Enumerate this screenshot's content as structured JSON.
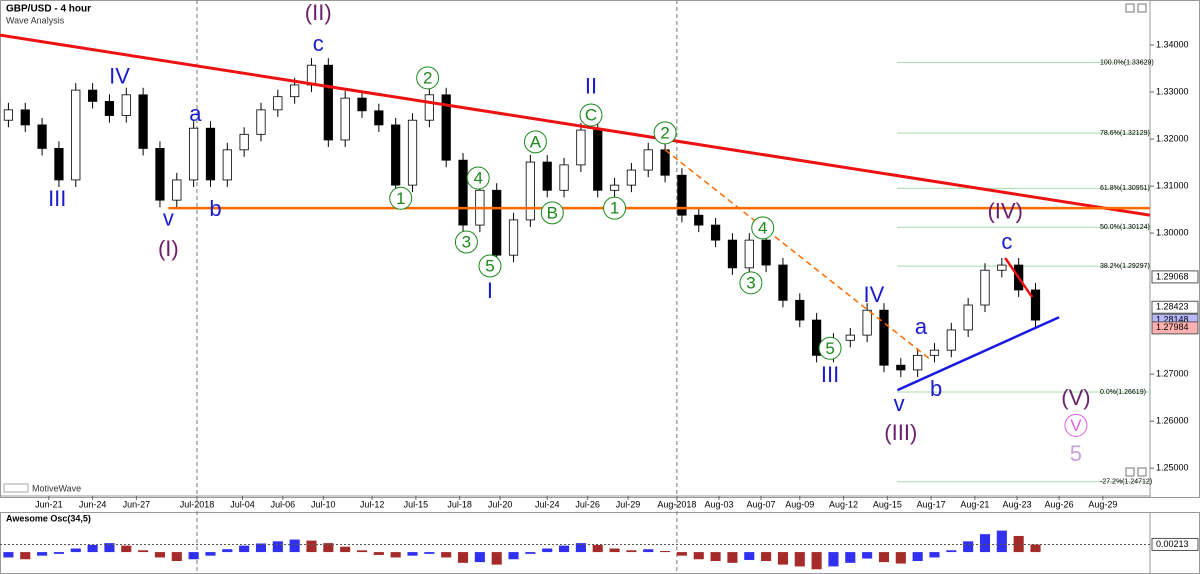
{
  "chart_data": [
    {
      "type": "candlestick",
      "title": "GBP/USD - 4 hour",
      "subtitle": "Wave Analysis",
      "watermark": "MotiveWave",
      "x": [
        0,
        1,
        2,
        3,
        4,
        5,
        6,
        7,
        8,
        9,
        10,
        11,
        12,
        13,
        14,
        15,
        16,
        17,
        18,
        19,
        20,
        21,
        22,
        23,
        24,
        25,
        26,
        27,
        28,
        29,
        30,
        31,
        32,
        33,
        34,
        35,
        36,
        37,
        38,
        39,
        40,
        41,
        42,
        43,
        44,
        45,
        46,
        47,
        48,
        49,
        50,
        51,
        52,
        53,
        54,
        55,
        56,
        57,
        58,
        59,
        60,
        61
      ],
      "open": [
        1.324,
        1.3262,
        1.323,
        1.318,
        1.3113,
        1.3304,
        1.328,
        1.325,
        1.3294,
        1.318,
        1.307,
        1.3113,
        1.3223,
        1.3113,
        1.3177,
        1.321,
        1.3262,
        1.329,
        1.3315,
        1.3357,
        1.3198,
        1.3287,
        1.326,
        1.323,
        1.3102,
        1.324,
        1.3294,
        1.3155,
        1.3017,
        1.3091,
        1.2953,
        1.3028,
        1.3151,
        1.3091,
        1.3145,
        1.3219,
        1.3091,
        1.3102,
        1.3134,
        1.3177,
        1.3123,
        1.3038,
        1.3017,
        1.2985,
        1.2926,
        1.2985,
        1.2932,
        1.2857,
        1.2815,
        1.274,
        1.2772,
        1.2783,
        1.2836,
        1.2719,
        1.2709,
        1.274,
        1.2751,
        1.2794,
        1.2847,
        1.2921,
        1.2932,
        1.2879
      ],
      "high": [
        1.3277,
        1.3277,
        1.3245,
        1.3195,
        1.3319,
        1.3319,
        1.3295,
        1.3309,
        1.3309,
        1.3195,
        1.3128,
        1.3238,
        1.3238,
        1.3192,
        1.3225,
        1.3277,
        1.3305,
        1.333,
        1.3372,
        1.3372,
        1.3302,
        1.3302,
        1.3275,
        1.3245,
        1.3255,
        1.3309,
        1.3309,
        1.317,
        1.3106,
        1.3106,
        1.3043,
        1.3166,
        1.3166,
        1.316,
        1.3234,
        1.3234,
        1.3117,
        1.3149,
        1.3192,
        1.3192,
        1.3138,
        1.3053,
        1.3032,
        1.3,
        1.3,
        1.3,
        1.2947,
        1.2872,
        1.283,
        1.2787,
        1.2798,
        1.2851,
        1.2851,
        1.2734,
        1.2755,
        1.2766,
        1.2809,
        1.2862,
        1.2936,
        1.2947,
        1.2947,
        1.2894
      ],
      "low": [
        1.3225,
        1.3215,
        1.3165,
        1.3098,
        1.3098,
        1.3265,
        1.3235,
        1.3235,
        1.3165,
        1.3055,
        1.3055,
        1.3098,
        1.3098,
        1.3098,
        1.3162,
        1.3195,
        1.3247,
        1.3275,
        1.33,
        1.3183,
        1.3183,
        1.3245,
        1.3215,
        1.3087,
        1.3087,
        1.3225,
        1.314,
        1.3002,
        1.3002,
        1.2938,
        1.2938,
        1.3013,
        1.3076,
        1.3076,
        1.313,
        1.3076,
        1.3076,
        1.3087,
        1.3119,
        1.3108,
        1.3023,
        1.3002,
        1.297,
        1.2911,
        1.2911,
        1.2917,
        1.2842,
        1.28,
        1.2725,
        1.2725,
        1.2757,
        1.2768,
        1.2704,
        1.2694,
        1.2694,
        1.2725,
        1.2736,
        1.2779,
        1.2832,
        1.2906,
        1.2864,
        1.28
      ],
      "close": [
        1.3262,
        1.323,
        1.318,
        1.3113,
        1.3304,
        1.328,
        1.325,
        1.3294,
        1.318,
        1.307,
        1.3113,
        1.3223,
        1.3113,
        1.3177,
        1.321,
        1.3262,
        1.329,
        1.3315,
        1.3357,
        1.3198,
        1.3287,
        1.326,
        1.323,
        1.3102,
        1.324,
        1.3294,
        1.3155,
        1.3017,
        1.3091,
        1.2953,
        1.3028,
        1.3151,
        1.3091,
        1.3145,
        1.3219,
        1.3091,
        1.3102,
        1.3134,
        1.3177,
        1.3123,
        1.3038,
        1.3017,
        1.2985,
        1.2926,
        1.2985,
        1.2932,
        1.2857,
        1.2815,
        1.274,
        1.2772,
        1.2783,
        1.2836,
        1.2719,
        1.2709,
        1.274,
        1.2751,
        1.2794,
        1.2847,
        1.2921,
        1.2932,
        1.2879,
        1.2815
      ],
      "up_color": "#ffffff",
      "down_color": "#000000",
      "xlim": [
        -0.5,
        67.8
      ],
      "ylim": [
        1.2443,
        1.3485
      ],
      "xticks": [
        {
          "value": 2.4,
          "label": "Jun-21"
        },
        {
          "value": 5.0,
          "label": "Jun-24"
        },
        {
          "value": 7.6,
          "label": "Jun-27"
        },
        {
          "value": 11.2,
          "label": "Jul-2018"
        },
        {
          "value": 13.9,
          "label": "Jul-04"
        },
        {
          "value": 16.3,
          "label": "Jul-06"
        },
        {
          "value": 18.7,
          "label": "Jul-10"
        },
        {
          "value": 21.6,
          "label": "Jul-12"
        },
        {
          "value": 24.2,
          "label": "Jul-15"
        },
        {
          "value": 26.8,
          "label": "Jul-18"
        },
        {
          "value": 29.2,
          "label": "Jul-20"
        },
        {
          "value": 32.0,
          "label": "Jul-24"
        },
        {
          "value": 34.4,
          "label": "Jul-26"
        },
        {
          "value": 36.8,
          "label": "Jul-29"
        },
        {
          "value": 39.7,
          "label": "Aug-2018"
        },
        {
          "value": 42.2,
          "label": "Aug-03"
        },
        {
          "value": 44.7,
          "label": "Aug-07"
        },
        {
          "value": 47.0,
          "label": "Aug-09"
        },
        {
          "value": 49.6,
          "label": "Aug-12"
        },
        {
          "value": 52.2,
          "label": "Aug-15"
        },
        {
          "value": 54.8,
          "label": "Aug-17"
        },
        {
          "value": 57.4,
          "label": "Aug-21"
        },
        {
          "value": 59.9,
          "label": "Aug-23"
        },
        {
          "value": 62.4,
          "label": "Aug-26"
        },
        {
          "value": 65.0,
          "label": "Aug-29"
        }
      ],
      "yticks": [
        {
          "value": 1.34,
          "label": "1.34000"
        },
        {
          "value": 1.33,
          "label": "1.33000"
        },
        {
          "value": 1.32,
          "label": "1.32000"
        },
        {
          "value": 1.31,
          "label": "1.31000"
        },
        {
          "value": 1.3,
          "label": "1.30000"
        },
        {
          "value": 1.27,
          "label": "1.27000"
        },
        {
          "value": 1.26,
          "label": "1.26000"
        },
        {
          "value": 1.25,
          "label": "1.25000"
        }
      ],
      "price_markers": [
        {
          "value": 1.29068,
          "color": "#ffffff"
        },
        {
          "value": 1.28423,
          "color": "#ffffff"
        },
        {
          "value": 1.28148,
          "color": "#b8b8ff"
        },
        {
          "value": 1.27984,
          "color": "#ffb0b0"
        }
      ],
      "fib_levels": [
        {
          "value": 1.33629,
          "label": "100.0%(1.33629)"
        },
        {
          "value": 1.32129,
          "label": "78.6%(1.32129)"
        },
        {
          "value": 1.30951,
          "label": "61.8%(1.30951)"
        },
        {
          "value": 1.30124,
          "label": "50.0%(1.30124)"
        },
        {
          "value": 1.29297,
          "label": "38.2%(1.29297)"
        },
        {
          "value": 1.26619,
          "label": "0.0%(1.26619)"
        },
        {
          "value": 1.24712,
          "label": "-27.2%(1.24712)"
        }
      ],
      "trend_lines": [
        {
          "color": "#ee1111",
          "width": 3,
          "x": [
            -0.5,
            67.8
          ],
          "y": [
            1.3421,
            1.3038
          ]
        },
        {
          "color": "#ff6a00",
          "width": 2.5,
          "x": [
            9.5,
            67.8
          ],
          "y": [
            1.3053,
            1.3053
          ]
        },
        {
          "color": "#1a1ae6",
          "width": 2.5,
          "x": [
            52.8,
            62.4
          ],
          "y": [
            1.2666,
            1.2821
          ]
        },
        {
          "color": "#ee1111",
          "width": 2.5,
          "x": [
            59.2,
            60.8
          ],
          "y": [
            1.2947,
            1.2864
          ]
        },
        {
          "color": "#ff6a00",
          "width": 1.5,
          "dash": true,
          "x": [
            39.0,
            54.8
          ],
          "y": [
            1.3177,
            1.273
          ]
        }
      ],
      "annotations": [
        {
          "text": "III",
          "color": "#1a1ad0",
          "x": 2.9,
          "y": 1.307
        },
        {
          "text": "IV",
          "color": "#1a1ad0",
          "x": 6.6,
          "y": 1.333
        },
        {
          "text": "v",
          "color": "#1a1ad0",
          "x": 9.5,
          "y": 1.3028
        },
        {
          "text": "(I)",
          "color": "#6b1f6b",
          "x": 9.5,
          "y": 1.2964
        },
        {
          "text": "a",
          "color": "#1a1ad0",
          "x": 11.1,
          "y": 1.3251
        },
        {
          "text": "b",
          "color": "#1a1ad0",
          "x": 12.3,
          "y": 1.3049
        },
        {
          "text": "(II)",
          "color": "#6b1f6b",
          "x": 18.4,
          "y": 1.3466
        },
        {
          "text": "c",
          "color": "#1a1ad0",
          "x": 18.4,
          "y": 1.34
        },
        {
          "text": "2",
          "color": "#1a8a1a",
          "circled": true,
          "x": 24.9,
          "y": 1.333
        },
        {
          "text": "1",
          "color": "#1a8a1a",
          "circled": true,
          "x": 23.3,
          "y": 1.3074
        },
        {
          "text": "4",
          "color": "#1a8a1a",
          "circled": true,
          "x": 27.9,
          "y": 1.3117
        },
        {
          "text": "3",
          "color": "#1a8a1a",
          "circled": true,
          "x": 27.2,
          "y": 1.2981
        },
        {
          "text": "5",
          "color": "#1a8a1a",
          "circled": true,
          "x": 28.6,
          "y": 1.293
        },
        {
          "text": "I",
          "color": "#1a1ad0",
          "x": 28.6,
          "y": 1.2874
        },
        {
          "text": "A",
          "color": "#1a8a1a",
          "circled": true,
          "x": 31.3,
          "y": 1.3194
        },
        {
          "text": "B",
          "color": "#1a8a1a",
          "circled": true,
          "x": 32.3,
          "y": 1.3043
        },
        {
          "text": "C",
          "color": "#1a8a1a",
          "circled": true,
          "x": 34.6,
          "y": 1.3251
        },
        {
          "text": "II",
          "color": "#1a1ad0",
          "x": 34.6,
          "y": 1.3309
        },
        {
          "text": "1",
          "color": "#1a8a1a",
          "circled": true,
          "x": 36.0,
          "y": 1.3053
        },
        {
          "text": "2",
          "color": "#1a8a1a",
          "circled": true,
          "x": 39.0,
          "y": 1.3213
        },
        {
          "text": "4",
          "color": "#1a8a1a",
          "circled": true,
          "x": 44.8,
          "y": 1.3011
        },
        {
          "text": "3",
          "color": "#1a8a1a",
          "circled": true,
          "x": 44.1,
          "y": 1.2894
        },
        {
          "text": "5",
          "color": "#1a8a1a",
          "circled": true,
          "x": 48.8,
          "y": 1.2755
        },
        {
          "text": "III",
          "color": "#1a1ad0",
          "x": 48.8,
          "y": 1.2696
        },
        {
          "text": "IV",
          "color": "#1a1ad0",
          "x": 51.4,
          "y": 1.2866
        },
        {
          "text": "a",
          "color": "#1a1ad0",
          "x": 54.2,
          "y": 1.2798
        },
        {
          "text": "b",
          "color": "#1a1ad0",
          "x": 55.1,
          "y": 1.2666
        },
        {
          "text": "v",
          "color": "#1a1ad0",
          "x": 52.9,
          "y": 1.2634
        },
        {
          "text": "(III)",
          "color": "#6b1f6b",
          "x": 53.0,
          "y": 1.2572
        },
        {
          "text": "(IV)",
          "color": "#6b1f6b",
          "x": 59.2,
          "y": 1.3043
        },
        {
          "text": "c",
          "color": "#1a1ad0",
          "x": 59.3,
          "y": 1.2979
        },
        {
          "text": "(V)",
          "color": "#6b1f6b",
          "x": 63.4,
          "y": 1.2647
        },
        {
          "text": "V",
          "color": "#e060e0",
          "circled": true,
          "x": 63.4,
          "y": 1.2591
        },
        {
          "text": "5",
          "color": "#c8a0e0",
          "x": 63.4,
          "y": 1.2528
        }
      ]
    },
    {
      "type": "bar",
      "title": "Awesome Osc(34,5)",
      "x": [
        0,
        1,
        2,
        3,
        4,
        5,
        6,
        7,
        8,
        9,
        10,
        11,
        12,
        13,
        14,
        15,
        16,
        17,
        18,
        19,
        20,
        21,
        22,
        23,
        24,
        25,
        26,
        27,
        28,
        29,
        30,
        31,
        32,
        33,
        34,
        35,
        36,
        37,
        38,
        39,
        40,
        41,
        42,
        43,
        44,
        45,
        46,
        47,
        48,
        49,
        50,
        51,
        52,
        53,
        54,
        55,
        56,
        57,
        58,
        59,
        60,
        61
      ],
      "values": [
        -0.0015,
        -0.002,
        -0.001,
        -0.0005,
        0.001,
        0.002,
        0.0025,
        0.0018,
        0.0005,
        -0.0015,
        -0.0025,
        -0.002,
        -0.001,
        0.0008,
        0.0018,
        0.0024,
        0.003,
        0.0035,
        0.0032,
        0.0025,
        0.0015,
        0.0005,
        -0.0008,
        -0.0015,
        -0.001,
        -0.0005,
        -0.0015,
        -0.003,
        -0.0028,
        -0.0035,
        -0.002,
        -0.0005,
        0.001,
        0.0018,
        0.0025,
        0.002,
        0.001,
        0.0005,
        0.0008,
        0.0003,
        -0.001,
        -0.002,
        -0.0025,
        -0.003,
        -0.0022,
        -0.0025,
        -0.0035,
        -0.004,
        -0.0048,
        -0.004,
        -0.003,
        -0.0018,
        -0.0028,
        -0.0032,
        -0.0025,
        -0.0015,
        0.0005,
        0.003,
        0.005,
        0.006,
        0.0045,
        0.0021
      ],
      "up_color": "#3030ee",
      "down_color": "#a52a2a",
      "xlim": [
        -0.5,
        67.8
      ],
      "ylim": [
        -0.005,
        0.007
      ],
      "price_markers": [
        {
          "value": 0.00213,
          "color": "#ffffff"
        }
      ]
    }
  ]
}
